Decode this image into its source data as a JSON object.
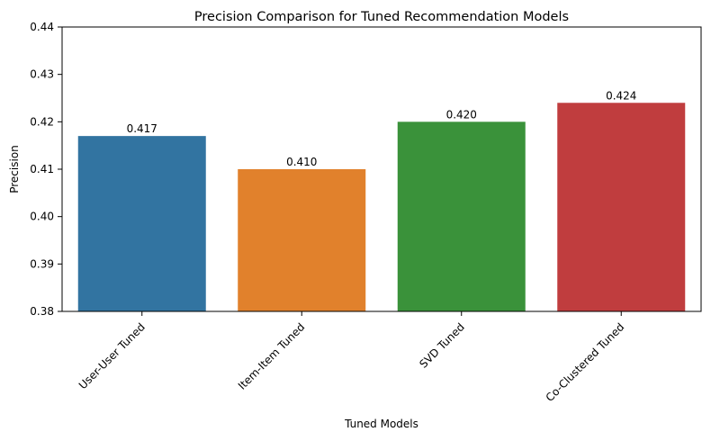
{
  "chart_data": {
    "type": "bar",
    "title": "Precision Comparison for Tuned Recommendation Models",
    "xlabel": "Tuned Models",
    "ylabel": "Precision",
    "categories": [
      "User-User Tuned",
      "Item-Item Tuned",
      "SVD Tuned",
      "Co-Clustered Tuned"
    ],
    "values": [
      0.417,
      0.41,
      0.42,
      0.424
    ],
    "value_labels": [
      "0.417",
      "0.410",
      "0.420",
      "0.424"
    ],
    "ylim": [
      0.38,
      0.44
    ],
    "y_ticks": [
      0.38,
      0.39,
      0.4,
      0.41,
      0.42,
      0.43,
      0.44
    ],
    "y_tick_labels": [
      "0.38",
      "0.39",
      "0.40",
      "0.41",
      "0.42",
      "0.43",
      "0.44"
    ],
    "x_tick_rotation_deg": -45,
    "grid": false,
    "legend": "none",
    "colors": [
      "#3274a1",
      "#e1812c",
      "#3a923a",
      "#c03d3e"
    ]
  }
}
